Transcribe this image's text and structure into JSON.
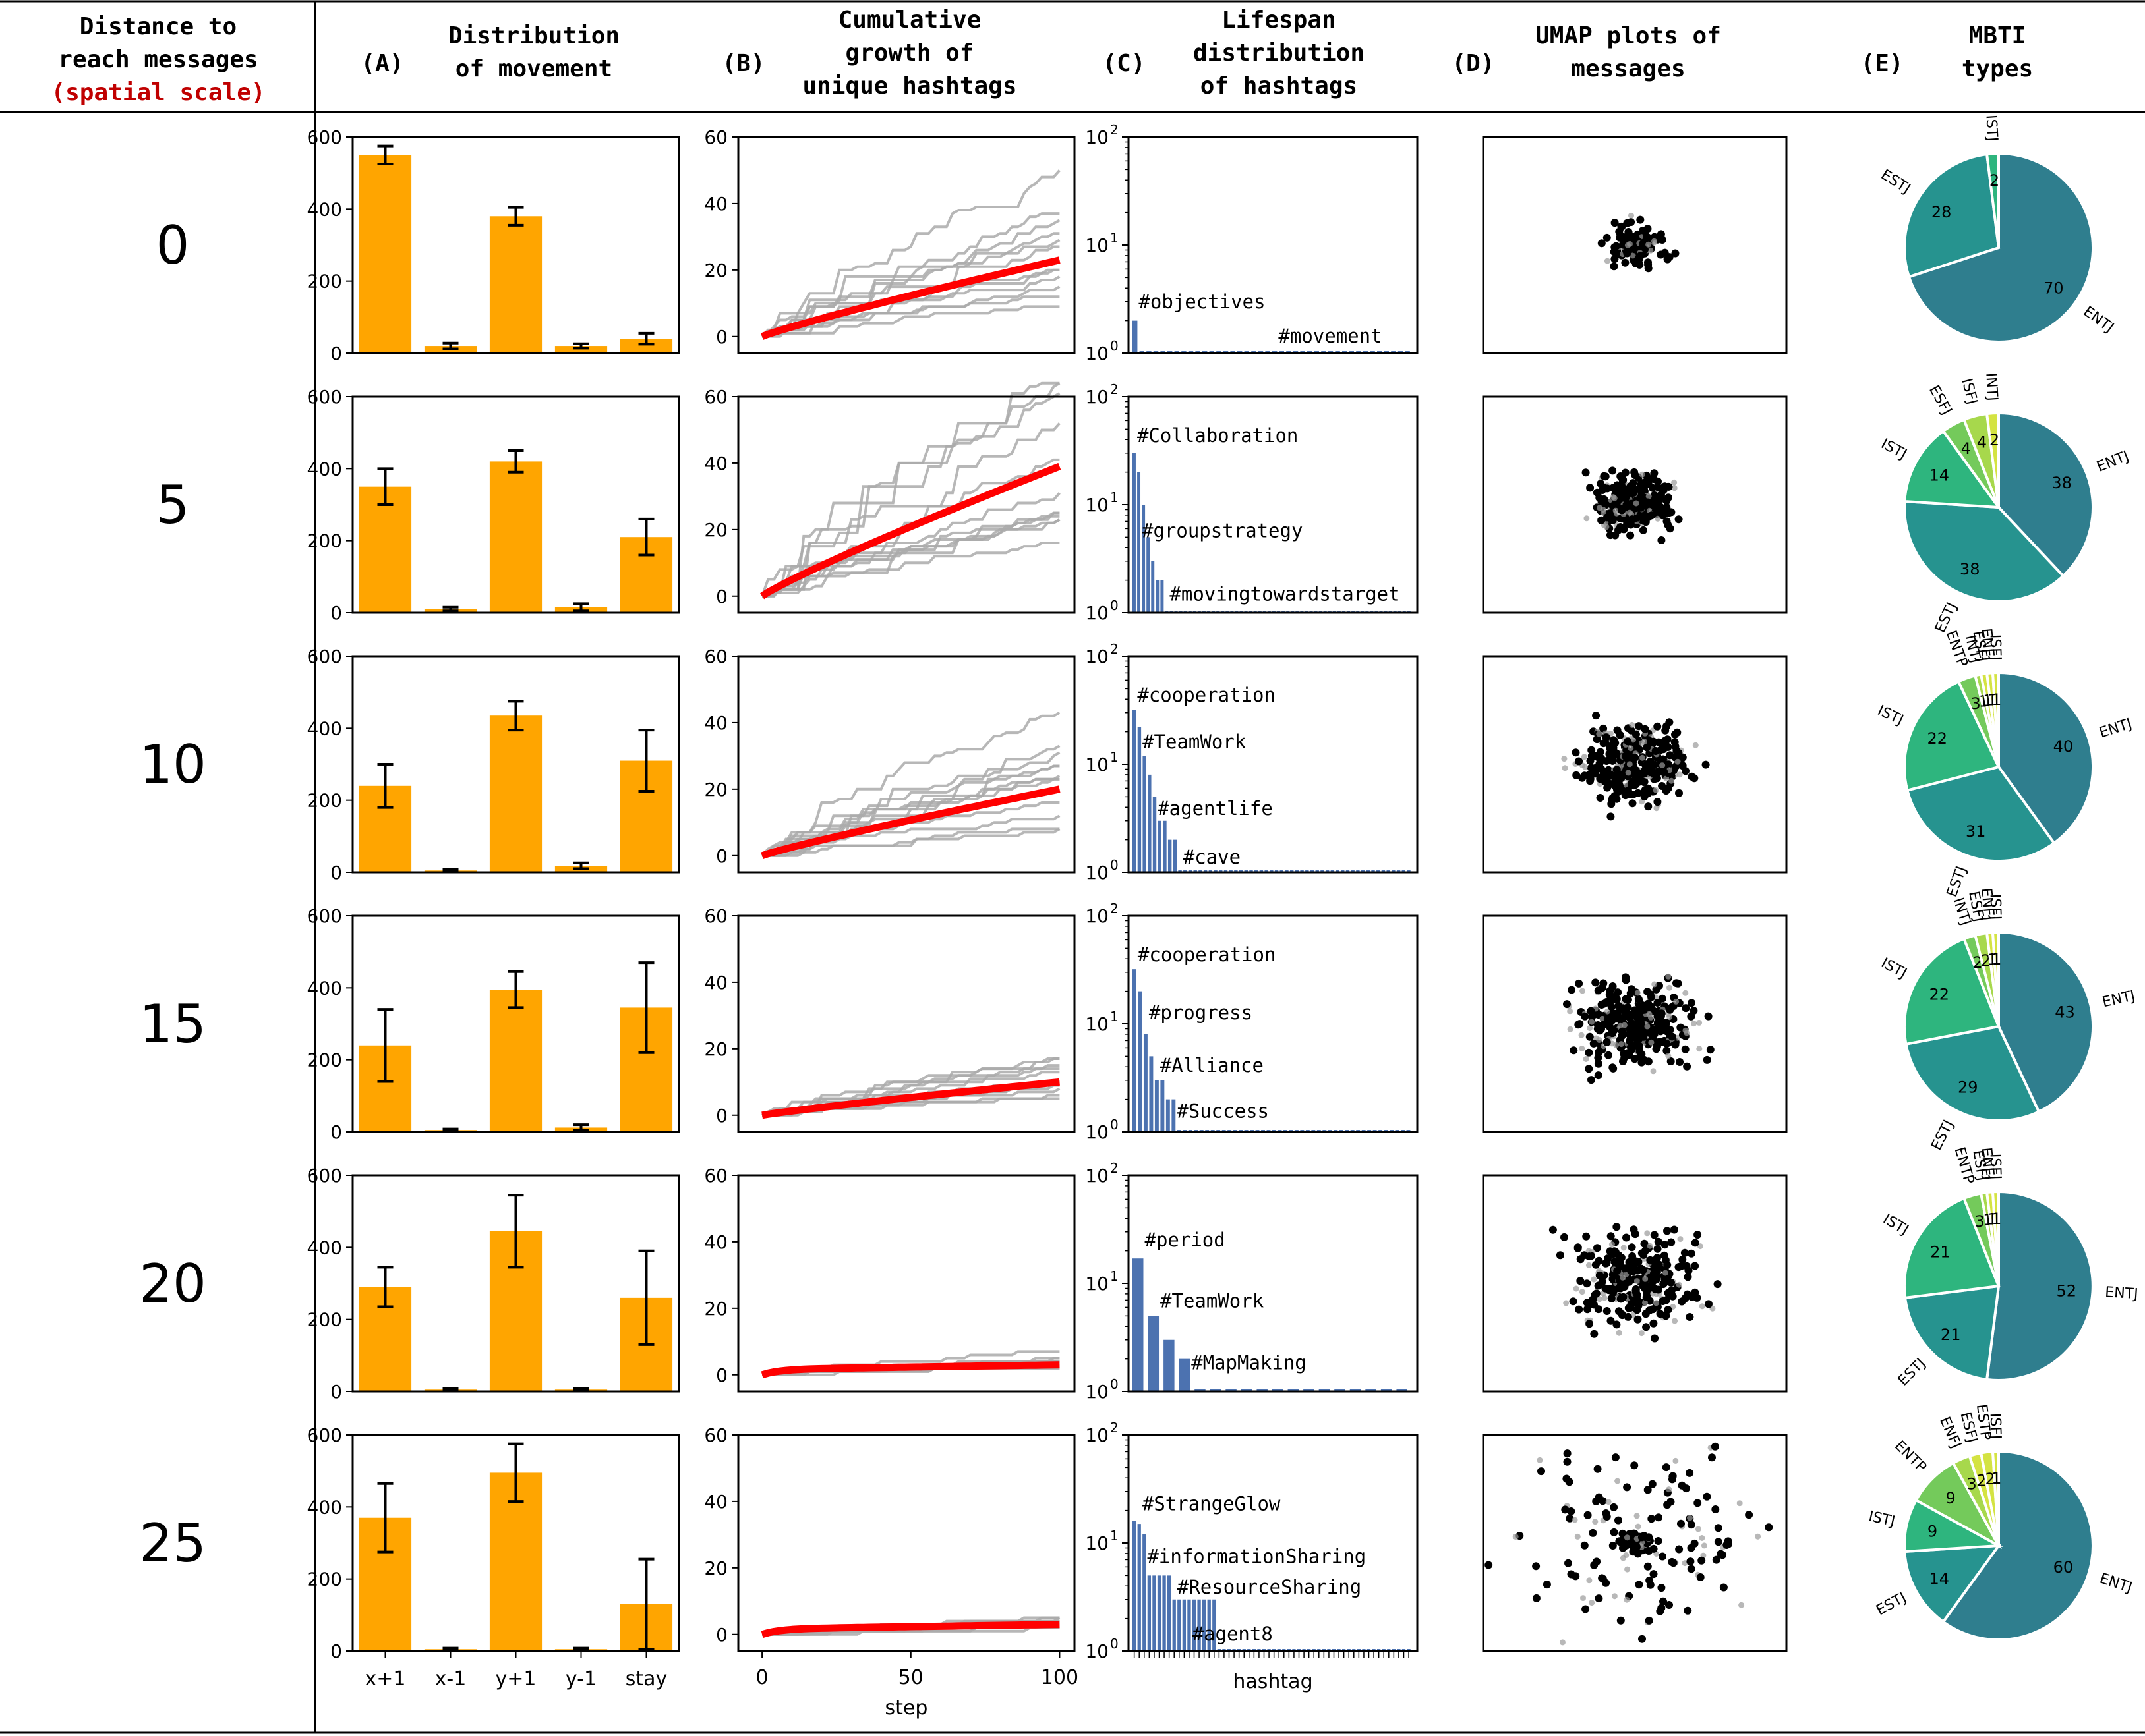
{
  "header": {
    "rowcol_line1": "Distance to",
    "rowcol_line2": "reach messages",
    "rowcol_line3": "(spatial scale)",
    "panels": [
      {
        "letter": "(A)",
        "lines": [
          "Distribution",
          "of movement"
        ]
      },
      {
        "letter": "(B)",
        "lines": [
          "Cumulative",
          "growth of",
          "unique hashtags"
        ]
      },
      {
        "letter": "(C)",
        "lines": [
          "Lifespan",
          "distribution",
          "of hashtags"
        ]
      },
      {
        "letter": "(D)",
        "lines": [
          "UMAP plots of",
          "messages"
        ]
      },
      {
        "letter": "(E)",
        "lines": [
          "MBTI",
          "types"
        ]
      }
    ]
  },
  "colors": {
    "bar": "#FFA500",
    "growth_mean": "#FF0000",
    "growth_runs": "#AAAAAA",
    "lifespan_bar": "#4C72B0",
    "scale_label": "#C00000",
    "pie": [
      "#2F7E8E",
      "#26938F",
      "#2EB57E",
      "#74CA5B",
      "#A7D84C",
      "#D4E342"
    ]
  },
  "axes": {
    "movement_categories": [
      "x+1",
      "x-1",
      "y+1",
      "y-1",
      "stay"
    ],
    "movement_yticks": [
      "0",
      "200",
      "400",
      "600"
    ],
    "growth_yticks": [
      "0",
      "20",
      "40",
      "60"
    ],
    "growth_xticks": [
      "0",
      "50",
      "100"
    ],
    "growth_xlabel": "step",
    "lifespan_xlabel": "hashtag",
    "lifespan_yticks": [
      "10",
      "10",
      "10"
    ],
    "lifespan_yexps": [
      "0",
      "1",
      "2"
    ]
  },
  "chart_data": {
    "type": "bar",
    "rows": [
      {
        "distance": "0",
        "movement": {
          "values": [
            550,
            20,
            380,
            20,
            40
          ],
          "errors": [
            25,
            8,
            25,
            6,
            15
          ]
        },
        "growth": {
          "mean_end": 23
        },
        "lifespan": {
          "counts": [
            2,
            1,
            1,
            1,
            1,
            1,
            1,
            1,
            1,
            1,
            1,
            1,
            1,
            1,
            1,
            1,
            1,
            1,
            1,
            1,
            1,
            1,
            1,
            1,
            1,
            1,
            1,
            1,
            1,
            1,
            1,
            1,
            1,
            1,
            1,
            1,
            1,
            1,
            1,
            1
          ],
          "labels": [
            {
              "text": "#objectives",
              "bar": 0,
              "value": 2.6
            },
            {
              "text": "#movement",
              "bar": 20,
              "value": 1.25
            }
          ]
        },
        "mbti": [
          {
            "label": "ENTJ",
            "value": 70
          },
          {
            "label": "ESTJ",
            "value": 28
          },
          {
            "label": "ISTJ",
            "value": 2
          }
        ]
      },
      {
        "distance": "5",
        "movement": {
          "values": [
            350,
            10,
            420,
            15,
            210
          ],
          "errors": [
            50,
            5,
            30,
            10,
            50
          ]
        },
        "growth": {
          "mean_end": 39
        },
        "lifespan": {
          "counts": [
            30,
            20,
            10,
            5,
            3,
            2,
            2,
            1,
            1,
            1,
            1,
            1,
            1,
            1,
            1,
            1,
            1,
            1,
            1,
            1,
            1,
            1,
            1,
            1,
            1,
            1,
            1,
            1,
            1,
            1,
            1,
            1,
            1,
            1,
            1,
            1,
            1,
            1,
            1,
            1,
            1,
            1,
            1,
            1,
            1,
            1,
            1,
            1,
            1,
            1,
            1,
            1,
            1,
            1,
            1,
            1,
            1,
            1,
            1,
            1
          ],
          "labels": [
            {
              "text": "#Collaboration",
              "bar": 0,
              "value": 38
            },
            {
              "text": "#groupstrategy",
              "bar": 1,
              "value": 5
            },
            {
              "text": "#movingtowardstarget",
              "bar": 7,
              "value": 1.3
            }
          ]
        },
        "mbti": [
          {
            "label": "ENTJ",
            "value": 38
          },
          {
            "label": "ESTJ",
            "value": 38
          },
          {
            "label": "ISTJ",
            "value": 14
          },
          {
            "label": "ESFJ",
            "value": 4
          },
          {
            "label": "ISFJ",
            "value": 4
          },
          {
            "label": "INTJ",
            "value": 2
          }
        ]
      },
      {
        "distance": "10",
        "movement": {
          "values": [
            240,
            5,
            435,
            18,
            310
          ],
          "errors": [
            60,
            3,
            40,
            8,
            85
          ]
        },
        "growth": {
          "mean_end": 20
        },
        "lifespan": {
          "counts": [
            32,
            22,
            12,
            8,
            5,
            3,
            3,
            2,
            2,
            1,
            1,
            1,
            1,
            1,
            1,
            1,
            1,
            1,
            1,
            1,
            1,
            1,
            1,
            1,
            1,
            1,
            1,
            1,
            1,
            1,
            1,
            1,
            1,
            1,
            1,
            1,
            1,
            1,
            1,
            1,
            1,
            1,
            1,
            1,
            1,
            1,
            1,
            1,
            1,
            1,
            1,
            1,
            1,
            1,
            1
          ],
          "labels": [
            {
              "text": "#cooperation",
              "bar": 0,
              "value": 38
            },
            {
              "text": "#TeamWork",
              "bar": 1,
              "value": 14
            },
            {
              "text": "#agentlife",
              "bar": 4,
              "value": 3.4
            },
            {
              "text": "#cave",
              "bar": 9,
              "value": 1.2
            }
          ]
        },
        "mbti": [
          {
            "label": "ENTJ",
            "value": 40
          },
          {
            "label": "ESTJ",
            "value": 31
          },
          {
            "label": "ISTJ",
            "value": 22
          },
          {
            "label": "ENTP",
            "value": 3
          },
          {
            "label": "INTJ",
            "value": 1
          },
          {
            "label": "ESFJ",
            "value": 1
          },
          {
            "label": "ENFJ",
            "value": 1
          },
          {
            "label": "ISFJ",
            "value": 1
          }
        ]
      },
      {
        "distance": "15",
        "movement": {
          "values": [
            240,
            5,
            395,
            12,
            345
          ],
          "errors": [
            100,
            3,
            50,
            8,
            125
          ]
        },
        "growth": {
          "mean_end": 10
        },
        "lifespan": {
          "counts": [
            32,
            20,
            8,
            5,
            3,
            3,
            2,
            2,
            1,
            1,
            1,
            1,
            1,
            1,
            1,
            1,
            1,
            1,
            1,
            1,
            1,
            1,
            1,
            1,
            1,
            1,
            1,
            1,
            1,
            1,
            1,
            1,
            1,
            1,
            1,
            1,
            1,
            1,
            1,
            1,
            1,
            1,
            1,
            1,
            1,
            1,
            1,
            1,
            1,
            1
          ],
          "labels": [
            {
              "text": "#cooperation",
              "bar": 0,
              "value": 38
            },
            {
              "text": "#progress",
              "bar": 2,
              "value": 11
            },
            {
              "text": "#Alliance",
              "bar": 4,
              "value": 3.6
            },
            {
              "text": "#Success",
              "bar": 7,
              "value": 1.35
            }
          ]
        },
        "mbti": [
          {
            "label": "ENTJ",
            "value": 43
          },
          {
            "label": "ESTJ",
            "value": 29
          },
          {
            "label": "ISTJ",
            "value": 22
          },
          {
            "label": "INTJ",
            "value": 2
          },
          {
            "label": "ESFJ",
            "value": 2
          },
          {
            "label": "ENFJ",
            "value": 1
          },
          {
            "label": "ISFJ",
            "value": 1
          }
        ]
      },
      {
        "distance": "20",
        "movement": {
          "values": [
            290,
            5,
            445,
            5,
            260
          ],
          "errors": [
            55,
            3,
            100,
            3,
            130
          ]
        },
        "growth": {
          "mean_end": 3
        },
        "lifespan": {
          "counts": [
            17,
            5,
            3,
            2,
            1,
            1,
            1,
            1,
            1,
            1,
            1,
            1,
            1,
            1,
            1,
            1,
            1,
            1
          ],
          "labels": [
            {
              "text": "#period",
              "bar": 0,
              "value": 22
            },
            {
              "text": "#TeamWork",
              "bar": 1,
              "value": 6
            },
            {
              "text": "#MapMaking",
              "bar": 3,
              "value": 1.6
            }
          ]
        },
        "mbti": [
          {
            "label": "ENTJ",
            "value": 52
          },
          {
            "label": "ESTJ",
            "value": 21
          },
          {
            "label": "ISTJ",
            "value": 21
          },
          {
            "label": "ENTP",
            "value": 3
          },
          {
            "label": "ESFJ",
            "value": 1
          },
          {
            "label": "ENFJ",
            "value": 1
          },
          {
            "label": "ISFJ",
            "value": 1
          }
        ]
      },
      {
        "distance": "25",
        "movement": {
          "values": [
            370,
            5,
            495,
            5,
            130
          ],
          "errors": [
            95,
            3,
            80,
            3,
            125
          ]
        },
        "growth": {
          "mean_end": 3
        },
        "lifespan": {
          "counts": [
            16,
            15,
            12,
            5,
            5,
            5,
            5,
            5,
            3,
            3,
            3,
            3,
            3,
            3,
            3,
            3,
            3,
            1,
            1,
            1,
            1,
            1,
            1,
            1,
            1,
            1,
            1,
            1,
            1,
            1,
            1,
            1,
            1,
            1,
            1,
            1,
            1,
            1,
            1,
            1,
            1,
            1,
            1,
            1,
            1,
            1,
            1,
            1,
            1,
            1,
            1,
            1,
            1,
            1,
            1,
            1
          ],
          "labels": [
            {
              "text": "#StrangeGlow",
              "bar": 1,
              "value": 20
            },
            {
              "text": "#informationSharing",
              "bar": 2,
              "value": 6.5
            },
            {
              "text": "#ResourceSharing",
              "bar": 8,
              "value": 3.4
            },
            {
              "text": "#agent8",
              "bar": 11,
              "value": 1.25
            }
          ]
        },
        "mbti": [
          {
            "label": "ENTJ",
            "value": 60
          },
          {
            "label": "ESTJ",
            "value": 14
          },
          {
            "label": "ISTJ",
            "value": 9
          },
          {
            "label": "ENTP",
            "value": 9
          },
          {
            "label": "ENFJ",
            "value": 3
          },
          {
            "label": "ESFJ",
            "value": 2
          },
          {
            "label": "ESTP",
            "value": 2
          },
          {
            "label": "ISFJ",
            "value": 1
          }
        ]
      }
    ]
  }
}
